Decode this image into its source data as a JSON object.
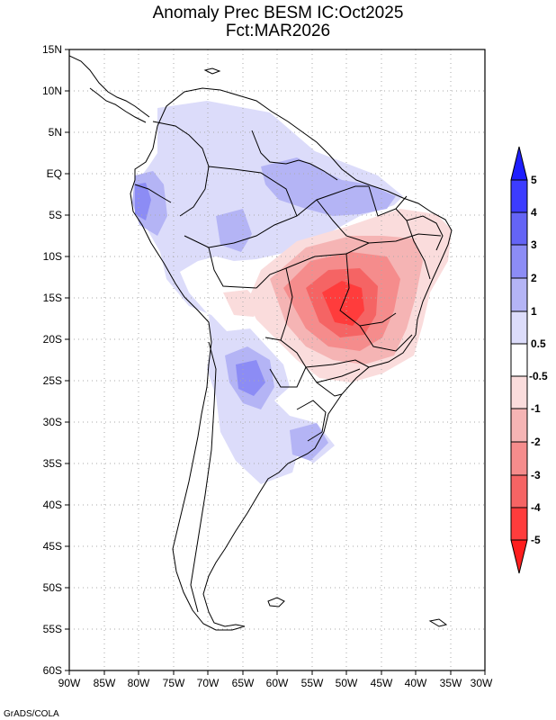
{
  "title": {
    "line1": "Anomaly Prec BESM IC:Oct2025",
    "line2": "Fct:MAR2026"
  },
  "credit": "GrADS/COLA",
  "map": {
    "lat_labels": [
      "15N",
      "10N",
      "5N",
      "EQ",
      "5S",
      "10S",
      "15S",
      "20S",
      "25S",
      "30S",
      "35S",
      "40S",
      "45S",
      "50S",
      "55S",
      "60S"
    ],
    "lon_labels": [
      "90W",
      "85W",
      "80W",
      "75W",
      "70W",
      "65W",
      "60W",
      "55W",
      "50W",
      "45W",
      "40W",
      "35W",
      "30W"
    ],
    "lat_range": [
      15,
      -60
    ],
    "lon_range": [
      -90,
      -30
    ]
  },
  "colorbar": {
    "labels": [
      "5",
      "4",
      "3",
      "2",
      "1",
      "0.5",
      "-0.5",
      "-1",
      "-2",
      "-3",
      "-4",
      "-5"
    ],
    "colors": [
      "#1e1eff",
      "#3c3cff",
      "#6464f5",
      "#8c8cf5",
      "#b4b4f5",
      "#dcdcfa",
      "#ffffff",
      "#fadcdc",
      "#f5b4b4",
      "#f58c8c",
      "#f56464",
      "#ff3c3c",
      "#ff1e1e"
    ]
  }
}
